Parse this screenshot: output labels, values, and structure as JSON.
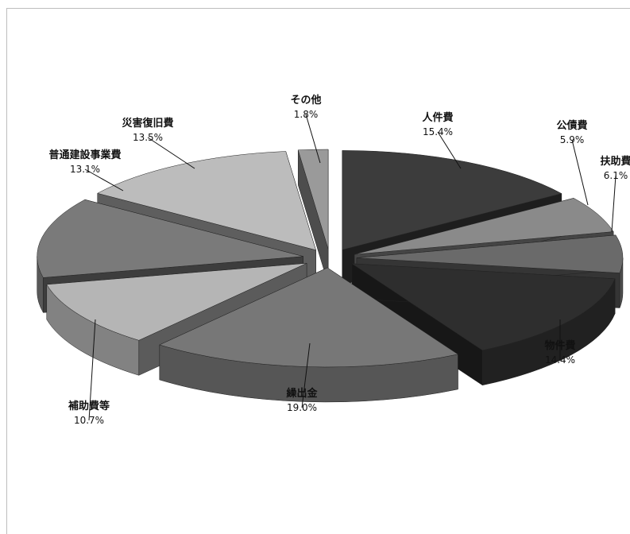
{
  "chart_data": {
    "type": "pie",
    "title": "",
    "style": "3d-exploded",
    "legend": "none",
    "series": [
      {
        "values": [
          {
            "label": "人件費",
            "value": 15.4,
            "display": "15.4%",
            "color": "#3c3c3c"
          },
          {
            "label": "公債費",
            "value": 5.9,
            "display": "5.9%",
            "color": "#8a8a8a"
          },
          {
            "label": "扶助費",
            "value": 6.1,
            "display": "6.1%",
            "color": "#6a6a6a"
          },
          {
            "label": "物件費",
            "value": 14.4,
            "display": "14.4%",
            "color": "#2e2e2e"
          },
          {
            "label": "繰出金",
            "value": 19.0,
            "display": "19.0%",
            "color": "#777777"
          },
          {
            "label": "補助費等",
            "value": 10.7,
            "display": "10.7%",
            "color": "#b5b5b5"
          },
          {
            "label": "普通建設事業費",
            "value": 13.1,
            "display": "13.1%",
            "color": "#7a7a7a"
          },
          {
            "label": "災害復旧費",
            "value": 13.5,
            "display": "13.5%",
            "color": "#bcbcbc"
          },
          {
            "label": "その他",
            "value": 1.8,
            "display": "1.8%",
            "color": "#9a9a9a"
          }
        ]
      }
    ]
  }
}
